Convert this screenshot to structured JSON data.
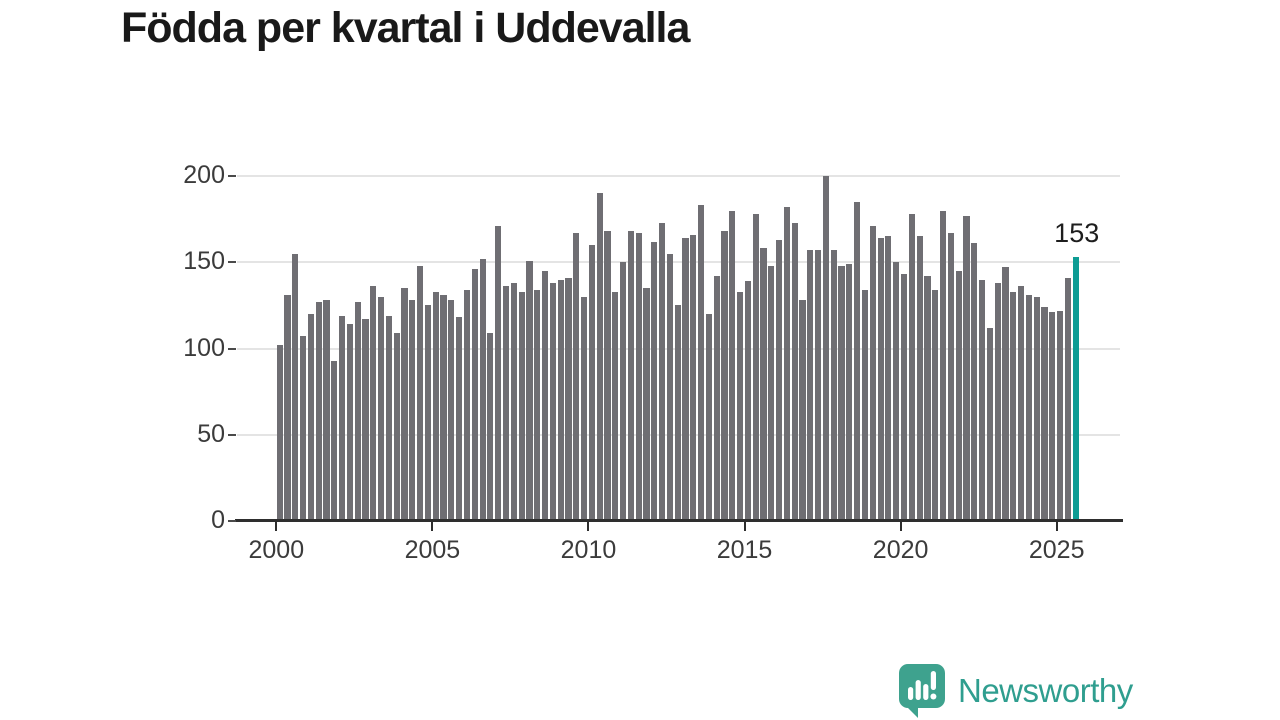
{
  "title": "Födda per kvartal i Uddevalla",
  "annotation": {
    "label": "153"
  },
  "branding": {
    "name": "Newsworthy",
    "icon": "newsworthy-speech-bubble-barchart-icon"
  },
  "colors": {
    "bar": "#6f6e73",
    "highlight": "#0d9c94",
    "grid": "#e4e4e4",
    "axis": "#2e2e2e",
    "tick_text": "#3b3b3b",
    "title_text": "#191919",
    "logo": "#2f9e8f",
    "logo_icon": "#3ea28e"
  },
  "chart_data": {
    "type": "bar",
    "title": "Födda per kvartal i Uddevalla",
    "xlabel": "",
    "ylabel": "",
    "ylim": [
      0,
      200
    ],
    "y_ticks": [
      0,
      50,
      100,
      150,
      200
    ],
    "x_tick_years": [
      2000,
      2005,
      2010,
      2015,
      2020,
      2025
    ],
    "grid": "horizontal-light",
    "legend": "none",
    "categories_unit": "quarter",
    "highlight": {
      "quarter": "2025 Q3",
      "value": 153,
      "label": "153",
      "color": "#0d9c94"
    },
    "series": [
      {
        "year": 2000,
        "values": [
          102,
          131,
          155,
          107
        ]
      },
      {
        "year": 2001,
        "values": [
          120,
          127,
          128,
          93
        ]
      },
      {
        "year": 2002,
        "values": [
          119,
          114,
          127,
          117
        ]
      },
      {
        "year": 2003,
        "values": [
          136,
          130,
          119,
          109
        ]
      },
      {
        "year": 2004,
        "values": [
          135,
          128,
          148,
          125
        ]
      },
      {
        "year": 2005,
        "values": [
          133,
          131,
          128,
          118
        ]
      },
      {
        "year": 2006,
        "values": [
          134,
          146,
          152,
          109
        ]
      },
      {
        "year": 2007,
        "values": [
          171,
          136,
          138,
          133
        ]
      },
      {
        "year": 2008,
        "values": [
          151,
          134,
          145,
          138
        ]
      },
      {
        "year": 2009,
        "values": [
          140,
          141,
          167,
          130
        ]
      },
      {
        "year": 2010,
        "values": [
          160,
          190,
          168,
          133
        ]
      },
      {
        "year": 2011,
        "values": [
          150,
          168,
          167,
          135
        ]
      },
      {
        "year": 2012,
        "values": [
          162,
          173,
          155,
          125
        ]
      },
      {
        "year": 2013,
        "values": [
          164,
          166,
          183,
          120
        ]
      },
      {
        "year": 2014,
        "values": [
          142,
          168,
          180,
          133
        ]
      },
      {
        "year": 2015,
        "values": [
          139,
          178,
          158,
          148
        ]
      },
      {
        "year": 2016,
        "values": [
          163,
          182,
          173,
          128
        ]
      },
      {
        "year": 2017,
        "values": [
          157,
          157,
          200,
          157
        ]
      },
      {
        "year": 2018,
        "values": [
          148,
          149,
          185,
          134
        ]
      },
      {
        "year": 2019,
        "values": [
          171,
          164,
          165,
          150
        ]
      },
      {
        "year": 2020,
        "values": [
          143,
          178,
          165,
          142
        ]
      },
      {
        "year": 2021,
        "values": [
          134,
          180,
          167,
          145
        ]
      },
      {
        "year": 2022,
        "values": [
          177,
          161,
          140,
          112
        ]
      },
      {
        "year": 2023,
        "values": [
          138,
          147,
          133,
          136
        ]
      },
      {
        "year": 2024,
        "values": [
          131,
          130,
          124,
          121
        ]
      },
      {
        "year": 2025,
        "values": [
          122,
          141,
          153
        ]
      }
    ]
  }
}
